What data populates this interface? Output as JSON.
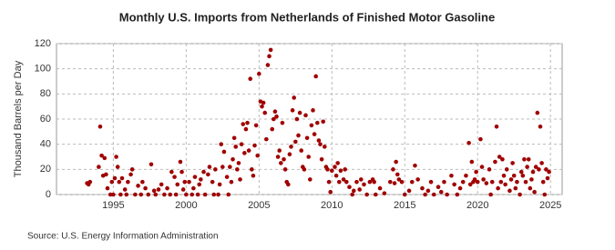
{
  "chart_data": {
    "type": "scatter",
    "title": "Monthly U.S. Imports from Netherlands of Finished Motor Gasoline",
    "y_label": "Thousand Barrels per Day",
    "source": "Source: U.S. Energy Information Administration",
    "color": "#a00000",
    "grid": true,
    "xlim": [
      1991.1,
      2025.8
    ],
    "ylim": [
      0,
      120
    ],
    "xticks": [
      1995,
      2000,
      2005,
      2010,
      2015,
      2020,
      2025
    ],
    "yticks": [
      0,
      20,
      40,
      60,
      80,
      100,
      120
    ],
    "x": [
      1993.2,
      1993.3,
      1993.4,
      1994.0,
      1994.1,
      1994.2,
      1994.3,
      1994.4,
      1994.5,
      1994.6,
      1994.8,
      1994.9,
      1995.0,
      1995.1,
      1995.2,
      1995.3,
      1995.4,
      1995.5,
      1995.6,
      1995.8,
      1995.9,
      1996.0,
      1996.2,
      1996.3,
      1996.5,
      1996.7,
      1996.9,
      1997.0,
      1997.2,
      1997.4,
      1997.6,
      1997.8,
      1997.9,
      1998.1,
      1998.3,
      1998.5,
      1998.7,
      1998.9,
      1999.0,
      1999.2,
      1999.3,
      1999.4,
      1999.6,
      1999.7,
      1999.8,
      1999.9,
      2000.0,
      2000.2,
      2000.4,
      2000.5,
      2000.6,
      2000.8,
      2000.9,
      2001.0,
      2001.2,
      2001.3,
      2001.5,
      2001.6,
      2001.8,
      2001.9,
      2002.0,
      2002.2,
      2002.3,
      2002.4,
      2002.5,
      2002.6,
      2002.8,
      2002.9,
      2003.0,
      2003.1,
      2003.2,
      2003.3,
      2003.4,
      2003.5,
      2003.6,
      2003.7,
      2003.8,
      2003.9,
      2004.0,
      2004.1,
      2004.2,
      2004.3,
      2004.4,
      2004.5,
      2004.6,
      2004.7,
      2004.8,
      2004.9,
      2005.0,
      2005.1,
      2005.2,
      2005.3,
      2005.4,
      2005.5,
      2005.6,
      2005.7,
      2005.8,
      2005.9,
      2006.0,
      2006.1,
      2006.2,
      2006.3,
      2006.4,
      2006.5,
      2006.6,
      2006.7,
      2006.8,
      2006.9,
      2007.0,
      2007.1,
      2007.2,
      2007.3,
      2007.4,
      2007.5,
      2007.6,
      2007.7,
      2007.8,
      2007.9,
      2008.0,
      2008.1,
      2008.2,
      2008.3,
      2008.4,
      2008.5,
      2008.6,
      2008.7,
      2008.8,
      2008.9,
      2009.0,
      2009.1,
      2009.2,
      2009.3,
      2009.4,
      2009.5,
      2009.6,
      2009.7,
      2009.8,
      2009.9,
      2010.0,
      2010.2,
      2010.3,
      2010.4,
      2010.5,
      2010.6,
      2010.8,
      2010.9,
      2011.0,
      2011.2,
      2011.4,
      2011.5,
      2011.7,
      2011.9,
      2012.0,
      2012.2,
      2012.4,
      2012.6,
      2012.8,
      2012.9,
      2013.0,
      2013.3,
      2013.6,
      2014.0,
      2014.2,
      2014.3,
      2014.4,
      2014.5,
      2014.6,
      2014.8,
      2015.0,
      2015.3,
      2015.5,
      2015.7,
      2015.9,
      2016.2,
      2016.4,
      2016.6,
      2016.8,
      2017.0,
      2017.3,
      2017.5,
      2017.7,
      2017.9,
      2018.2,
      2018.4,
      2018.6,
      2018.8,
      2019.0,
      2019.2,
      2019.4,
      2019.5,
      2019.6,
      2019.7,
      2019.8,
      2019.9,
      2020.0,
      2020.2,
      2020.3,
      2020.4,
      2020.6,
      2020.8,
      2020.9,
      2021.0,
      2021.2,
      2021.3,
      2021.4,
      2021.5,
      2021.6,
      2021.7,
      2021.8,
      2021.9,
      2022.0,
      2022.2,
      2022.3,
      2022.4,
      2022.5,
      2022.6,
      2022.7,
      2022.9,
      2023.0,
      2023.1,
      2023.2,
      2023.3,
      2023.4,
      2023.5,
      2023.6,
      2023.7,
      2023.8,
      2023.9,
      2024.0,
      2024.1,
      2024.2,
      2024.3,
      2024.4,
      2024.5,
      2024.6,
      2024.7,
      2024.8,
      2024.9
    ],
    "values": [
      9,
      8,
      10,
      22,
      54,
      31,
      15,
      29,
      16,
      5,
      0,
      10,
      0,
      13,
      30,
      22,
      10,
      0,
      13,
      4,
      0,
      10,
      16,
      20,
      0,
      7,
      0,
      10,
      5,
      0,
      24,
      3,
      0,
      4,
      8,
      0,
      5,
      0,
      18,
      14,
      0,
      8,
      26,
      18,
      4,
      10,
      0,
      10,
      0,
      5,
      14,
      0,
      8,
      12,
      18,
      0,
      16,
      22,
      10,
      0,
      20,
      0,
      8,
      40,
      22,
      34,
      14,
      0,
      22,
      10,
      28,
      45,
      38,
      20,
      25,
      12,
      40,
      56,
      33,
      52,
      57,
      35,
      92,
      20,
      15,
      39,
      55,
      31,
      96,
      74,
      70,
      73,
      65,
      44,
      103,
      110,
      115,
      52,
      60,
      66,
      62,
      30,
      35,
      25,
      57,
      28,
      20,
      10,
      8,
      32,
      38,
      67,
      77,
      42,
      60,
      47,
      65,
      35,
      22,
      20,
      63,
      45,
      30,
      12,
      55,
      67,
      48,
      94,
      57,
      43,
      40,
      28,
      58,
      38,
      22,
      20,
      10,
      2,
      19,
      22,
      15,
      25,
      10,
      19,
      12,
      20,
      10,
      6,
      0,
      3,
      10,
      4,
      12,
      8,
      0,
      10,
      12,
      10,
      0,
      5,
      1,
      10,
      20,
      9,
      26,
      16,
      12,
      10,
      0,
      3,
      10,
      23,
      12,
      5,
      0,
      3,
      10,
      0,
      6,
      2,
      10,
      0,
      15,
      8,
      0,
      5,
      10,
      15,
      41,
      8,
      26,
      10,
      12,
      18,
      10,
      44,
      22,
      12,
      9,
      20,
      0,
      10,
      26,
      54,
      5,
      30,
      10,
      28,
      15,
      8,
      20,
      3,
      12,
      25,
      15,
      5,
      10,
      0,
      18,
      15,
      28,
      10,
      22,
      28,
      5,
      12,
      18,
      2,
      22,
      65,
      20,
      54,
      25,
      10,
      0,
      20,
      13,
      18
    ]
  }
}
